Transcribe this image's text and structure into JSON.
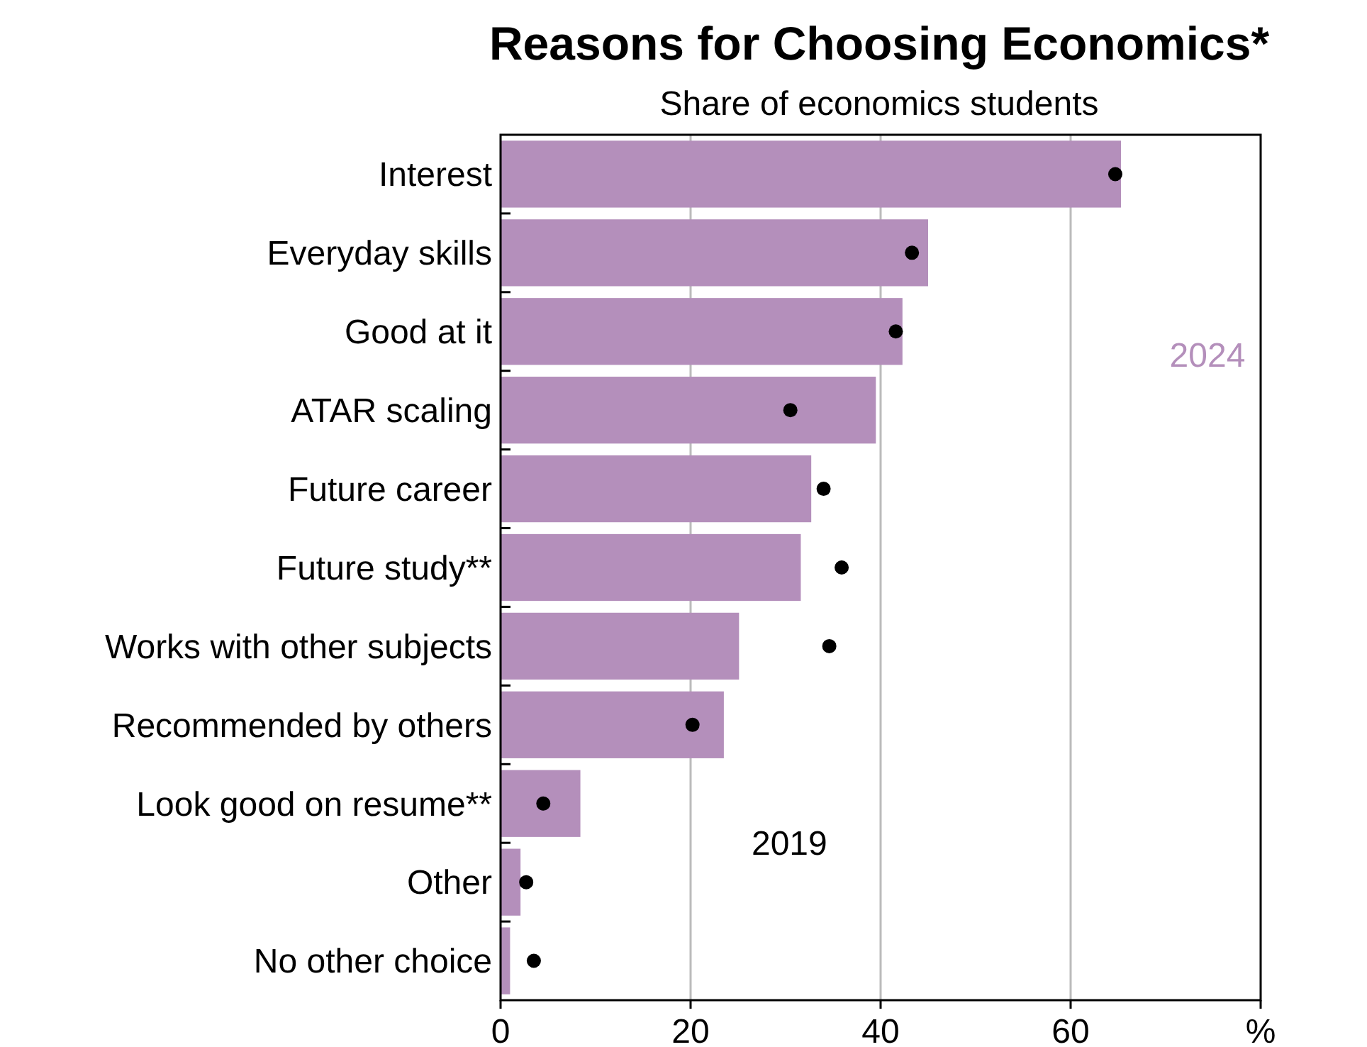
{
  "chart_data": {
    "type": "bar",
    "orientation": "horizontal",
    "title": "Reasons for Choosing Economics*",
    "subtitle": "Share of economics students",
    "categories": [
      "Interest",
      "Everyday skills",
      "Good at it",
      "ATAR scaling",
      "Future career",
      "Future study**",
      "Works with other subjects",
      "Recommended by others",
      "Look good on resume**",
      "Other",
      "No other choice"
    ],
    "series": [
      {
        "name": "2024",
        "color": "#b48fbb",
        "values": [
          65.3,
          45.0,
          42.3,
          39.5,
          32.7,
          31.6,
          25.1,
          23.5,
          8.4,
          2.1,
          1.0
        ]
      },
      {
        "name": "2019",
        "type": "scatter",
        "color": "#000000",
        "marker": "circle",
        "values": [
          64.7,
          43.3,
          41.6,
          30.5,
          34.0,
          35.9,
          34.6,
          20.2,
          4.5,
          2.7,
          3.5
        ]
      }
    ],
    "xlim": [
      0,
      80
    ],
    "xticks": [
      0,
      20,
      40,
      60,
      {
        "value": 80,
        "label": "%"
      }
    ],
    "grid": "x",
    "legend": false
  }
}
